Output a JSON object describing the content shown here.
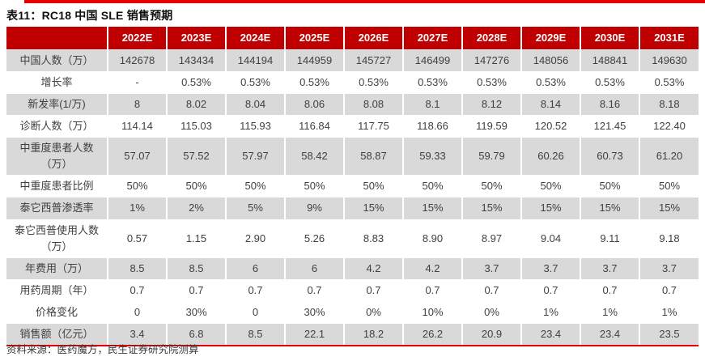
{
  "page": {
    "title": "表11：RC18 中国 SLE 销售预期",
    "source": "资料来源：医药魔方，民生证券研究院测算"
  },
  "table": {
    "columns": [
      "2022E",
      "2023E",
      "2024E",
      "2025E",
      "2026E",
      "2027E",
      "2028E",
      "2029E",
      "2030E",
      "2031E"
    ],
    "rows": [
      {
        "label": "中国人数（万）",
        "values": [
          "142678",
          "143434",
          "144194",
          "144959",
          "145727",
          "146499",
          "147276",
          "148056",
          "148841",
          "149630"
        ]
      },
      {
        "label": "增长率",
        "values": [
          "-",
          "0.53%",
          "0.53%",
          "0.53%",
          "0.53%",
          "0.53%",
          "0.53%",
          "0.53%",
          "0.53%",
          "0.53%"
        ]
      },
      {
        "label": "新发率(1/万)",
        "values": [
          "8",
          "8.02",
          "8.04",
          "8.06",
          "8.08",
          "8.1",
          "8.12",
          "8.14",
          "8.16",
          "8.18"
        ]
      },
      {
        "label": "诊断人数（万）",
        "values": [
          "114.14",
          "115.03",
          "115.93",
          "116.84",
          "117.75",
          "118.66",
          "119.59",
          "120.52",
          "121.45",
          "122.40"
        ]
      },
      {
        "label": "中重度患者人数\n（万）",
        "values": [
          "57.07",
          "57.52",
          "57.97",
          "58.42",
          "58.87",
          "59.33",
          "59.79",
          "60.26",
          "60.73",
          "61.20"
        ]
      },
      {
        "label": "中重度患者比例",
        "values": [
          "50%",
          "50%",
          "50%",
          "50%",
          "50%",
          "50%",
          "50%",
          "50%",
          "50%",
          "50%"
        ]
      },
      {
        "label": "泰它西普渗透率",
        "values": [
          "1%",
          "2%",
          "5%",
          "9%",
          "15%",
          "15%",
          "15%",
          "15%",
          "15%",
          "15%"
        ]
      },
      {
        "label": "泰它西普使用人数\n（万）",
        "values": [
          "0.57",
          "1.15",
          "2.90",
          "5.26",
          "8.83",
          "8.90",
          "8.97",
          "9.04",
          "9.11",
          "9.18"
        ]
      },
      {
        "label": "年费用（万）",
        "values": [
          "8.5",
          "8.5",
          "6",
          "6",
          "4.2",
          "4.2",
          "3.7",
          "3.7",
          "3.7",
          "3.7"
        ]
      },
      {
        "label": "用药周期（年）",
        "values": [
          "0.7",
          "0.7",
          "0.7",
          "0.7",
          "0.7",
          "0.7",
          "0.7",
          "0.7",
          "0.7",
          "0.7"
        ]
      },
      {
        "label": "价格变化",
        "values": [
          "0",
          "30%",
          "0",
          "30%",
          "0%",
          "10%",
          "0%",
          "1%",
          "1%",
          "1%"
        ]
      },
      {
        "label": "销售额（亿元）",
        "values": [
          "3.4",
          "6.8",
          "8.5",
          "22.1",
          "18.2",
          "26.2",
          "20.9",
          "23.4",
          "23.4",
          "23.5"
        ]
      }
    ]
  },
  "colors": {
    "header_bg": "#c00000",
    "stripe_bg": "#d9d9d9",
    "accent": "#e60000"
  }
}
